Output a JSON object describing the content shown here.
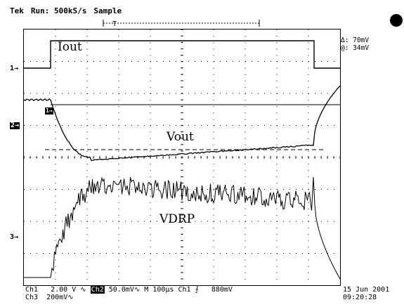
{
  "header": {
    "brand": "Tek",
    "run_status": "Run: 500kS/s",
    "mode": "Sample"
  },
  "cursor_readout": {
    "delta": "Δ: 70mV",
    "at": "@: 34mV"
  },
  "trace_labels": {
    "iout": "Iout",
    "vout": "Vout",
    "vdrp": "VDRP"
  },
  "channel_markers": {
    "ch1": "1→",
    "ch2": "2→",
    "ch3": "3→",
    "trigger": "T"
  },
  "status": {
    "ch1_label": "Ch1",
    "ch1_scale": "2.00 V",
    "ch2_label": "Ch2",
    "ch2_scale": "50.0mV",
    "timebase": "M 100μs",
    "trig_source": "Ch1",
    "trig_level": "880mV",
    "ch3_label": "Ch3",
    "ch3_scale": "200mV",
    "date": "15 Jun 2001",
    "time": "09:20:28"
  },
  "colors": {
    "background": "#ffffff",
    "trace": "#000000",
    "grid": "#000000"
  }
}
